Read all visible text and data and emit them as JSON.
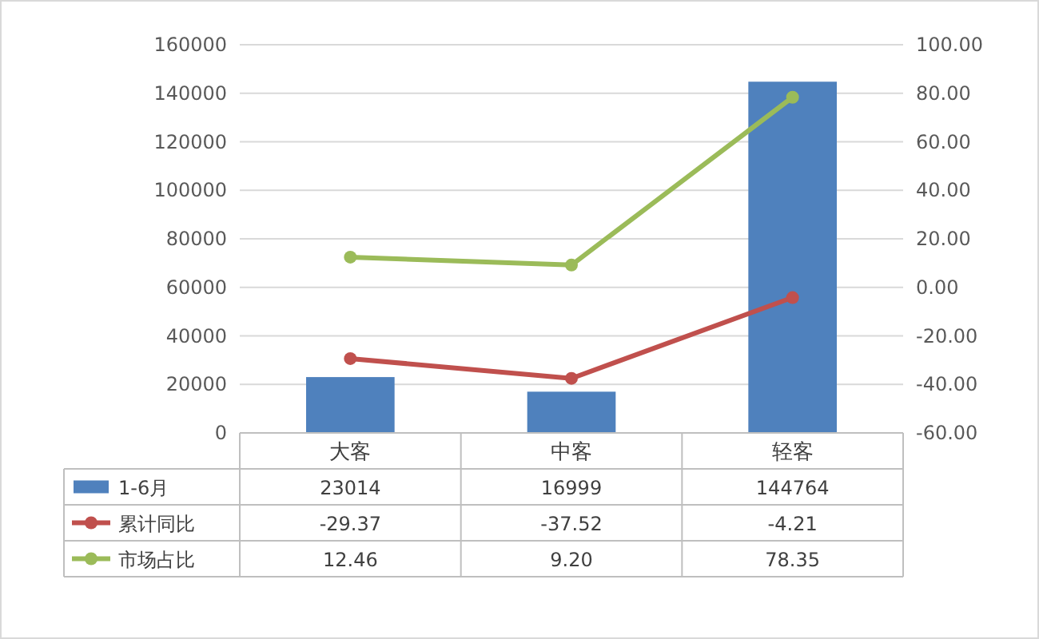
{
  "chart_data": {
    "type": "bar",
    "categories": [
      "大客",
      "中客",
      "轻客"
    ],
    "series": [
      {
        "name": "1-6月",
        "color": "#4f81bd",
        "values": [
          23014,
          16999,
          144764
        ],
        "value_labels": [
          "23014",
          "16999",
          "144764"
        ]
      },
      {
        "name": "累计同比",
        "type": "line",
        "axis": "y2",
        "color": "#c0504d",
        "values": [
          -29.37,
          -37.52,
          -4.21
        ],
        "value_labels": [
          "-29.37",
          "-37.52",
          "-4.21"
        ]
      },
      {
        "name": "市场占比",
        "type": "line",
        "axis": "y2",
        "color": "#9bbb59",
        "values": [
          12.46,
          9.2,
          78.35
        ],
        "value_labels": [
          "12.46",
          "9.20",
          "78.35"
        ]
      }
    ],
    "ylim": [
      0,
      160000
    ],
    "yticks": [
      0,
      20000,
      40000,
      60000,
      80000,
      100000,
      120000,
      140000,
      160000
    ],
    "y2lim": [
      -60,
      100
    ],
    "y2ticks": [
      {
        "value": -60,
        "label": "-60.00"
      },
      {
        "value": -40,
        "label": "-40.00"
      },
      {
        "value": -20,
        "label": "-20.00"
      },
      {
        "value": 0,
        "label": "0.00"
      },
      {
        "value": 20,
        "label": "20.00"
      },
      {
        "value": 40,
        "label": "40.00"
      },
      {
        "value": 60,
        "label": "60.00"
      },
      {
        "value": 80,
        "label": "80.00"
      },
      {
        "value": 100,
        "label": "100.00"
      }
    ],
    "grid": "y",
    "legend": "bottom",
    "marker": "circle",
    "line_style": "solid"
  }
}
